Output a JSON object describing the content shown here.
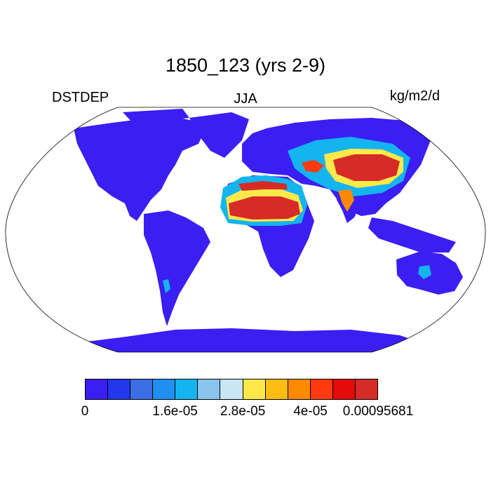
{
  "title": "1850_123 (yrs 2-9)",
  "left_subtitle": "DSTDEP",
  "center_subtitle": "JJA",
  "right_subtitle": "kg/m2/d",
  "projection": "Robinson",
  "colorbar": {
    "colors": [
      "#3b1ef2",
      "#2337ec",
      "#3b6de3",
      "#1f8ff2",
      "#14b4f0",
      "#88c4ec",
      "#c9e6f5",
      "#ffe94a",
      "#ffbc12",
      "#ff8a00",
      "#ff3a0e",
      "#e50a0a",
      "#d62b27"
    ],
    "labels": [
      {
        "text": "0",
        "boundary": 0
      },
      {
        "text": "1.6e-05",
        "boundary": 4
      },
      {
        "text": "2.8e-05",
        "boundary": 7
      },
      {
        "text": "4e-05",
        "boundary": 10
      },
      {
        "text": "0.00095681",
        "boundary": 13
      }
    ]
  },
  "land_base_color": "#3b1ef2",
  "ocean_color": "#ffffff"
}
